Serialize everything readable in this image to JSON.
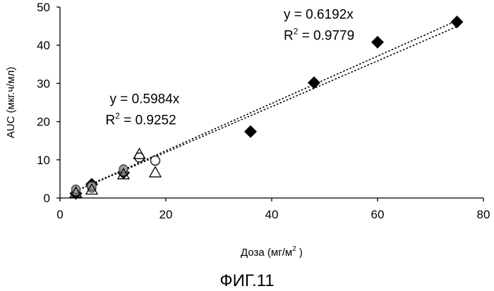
{
  "chart_data": {
    "type": "scatter",
    "xlabel": "Доза (мг/м",
    "xlabel_sup": "2",
    "xlabel_end": " )",
    "ylabel": "AUC (мкг.ч/мл)",
    "xlim": [
      0,
      80
    ],
    "ylim": [
      0,
      50
    ],
    "xticks": [
      0,
      20,
      40,
      60,
      80
    ],
    "yticks": [
      0,
      10,
      20,
      30,
      40,
      50
    ],
    "grid": false,
    "series": [
      {
        "name": "diamonds",
        "marker": "diamond-filled",
        "points": [
          [
            3,
            1.2
          ],
          [
            6,
            3.6
          ],
          [
            12,
            6.6
          ],
          [
            36,
            17.4
          ],
          [
            48,
            30.2
          ],
          [
            60,
            40.8
          ],
          [
            75,
            46.1
          ]
        ]
      },
      {
        "name": "shaded-circles",
        "marker": "circle-gray",
        "points": [
          [
            3,
            1.8
          ],
          [
            3,
            2.3
          ],
          [
            6,
            2.6
          ],
          [
            6,
            3.1
          ],
          [
            12,
            7.0
          ],
          [
            12,
            7.6
          ]
        ]
      },
      {
        "name": "open-circles",
        "marker": "circle-open",
        "points": [
          [
            15,
            10.6
          ],
          [
            18,
            9.8
          ]
        ]
      },
      {
        "name": "open-triangles",
        "marker": "triangle-open",
        "points": [
          [
            3,
            1.4
          ],
          [
            6,
            2.2
          ],
          [
            12,
            6.2
          ],
          [
            15,
            11.5
          ],
          [
            18,
            6.7
          ]
        ]
      }
    ],
    "trendlines": [
      {
        "name": "fit-all",
        "slope": 0.6192,
        "x_range": [
          3,
          75
        ]
      },
      {
        "name": "fit-low",
        "slope": 0.5984,
        "x_range": [
          3,
          75
        ]
      }
    ],
    "annotations": [
      {
        "eq": "y = 0.6192x",
        "r2_prefix": "R",
        "r2_sup": "2",
        "r2_value": " = 0.9779",
        "at": [
          42,
          47
        ]
      },
      {
        "eq": "y = 0.5984x",
        "r2_prefix": "R",
        "r2_sup": "2",
        "r2_value": " = 0.9252",
        "at": [
          9,
          25
        ]
      }
    ]
  },
  "figure_caption": "ФИГ.11",
  "colors": {
    "axis": "#000000",
    "diamond": "#000000",
    "circle_gray_fill": "#9a9a9a",
    "circle_gray_stroke": "#444444",
    "open_stroke": "#000000",
    "trend": "#000000"
  }
}
